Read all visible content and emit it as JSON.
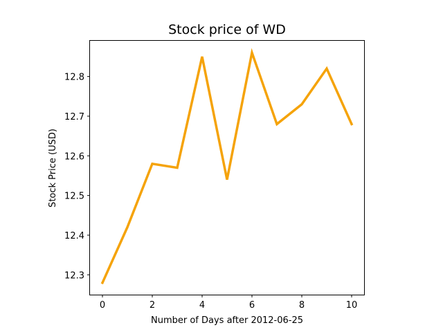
{
  "chart_data": {
    "type": "line",
    "title": "Stock price of WD",
    "xlabel": "Number of Days after 2012-06-25",
    "ylabel": "Stock Price (USD)",
    "x": [
      0,
      1,
      2,
      3,
      4,
      5,
      6,
      7,
      8,
      9,
      10
    ],
    "series": [
      {
        "values": [
          12.28,
          12.42,
          12.58,
          12.57,
          12.85,
          12.54,
          12.86,
          12.68,
          12.73,
          12.82,
          12.68
        ],
        "color": "#f5a30a"
      }
    ],
    "xlim": [
      -0.5,
      10.5
    ],
    "ylim": [
      12.25,
      12.89
    ],
    "xticks": [
      0,
      2,
      4,
      6,
      8,
      10
    ],
    "xtick_labels": [
      "0",
      "2",
      "4",
      "6",
      "8",
      "10"
    ],
    "yticks": [
      12.3,
      12.4,
      12.5,
      12.6,
      12.7,
      12.8
    ],
    "ytick_labels": [
      "12.3",
      "12.4",
      "12.5",
      "12.6",
      "12.7",
      "12.8"
    ],
    "grid": false,
    "legend": "none"
  }
}
